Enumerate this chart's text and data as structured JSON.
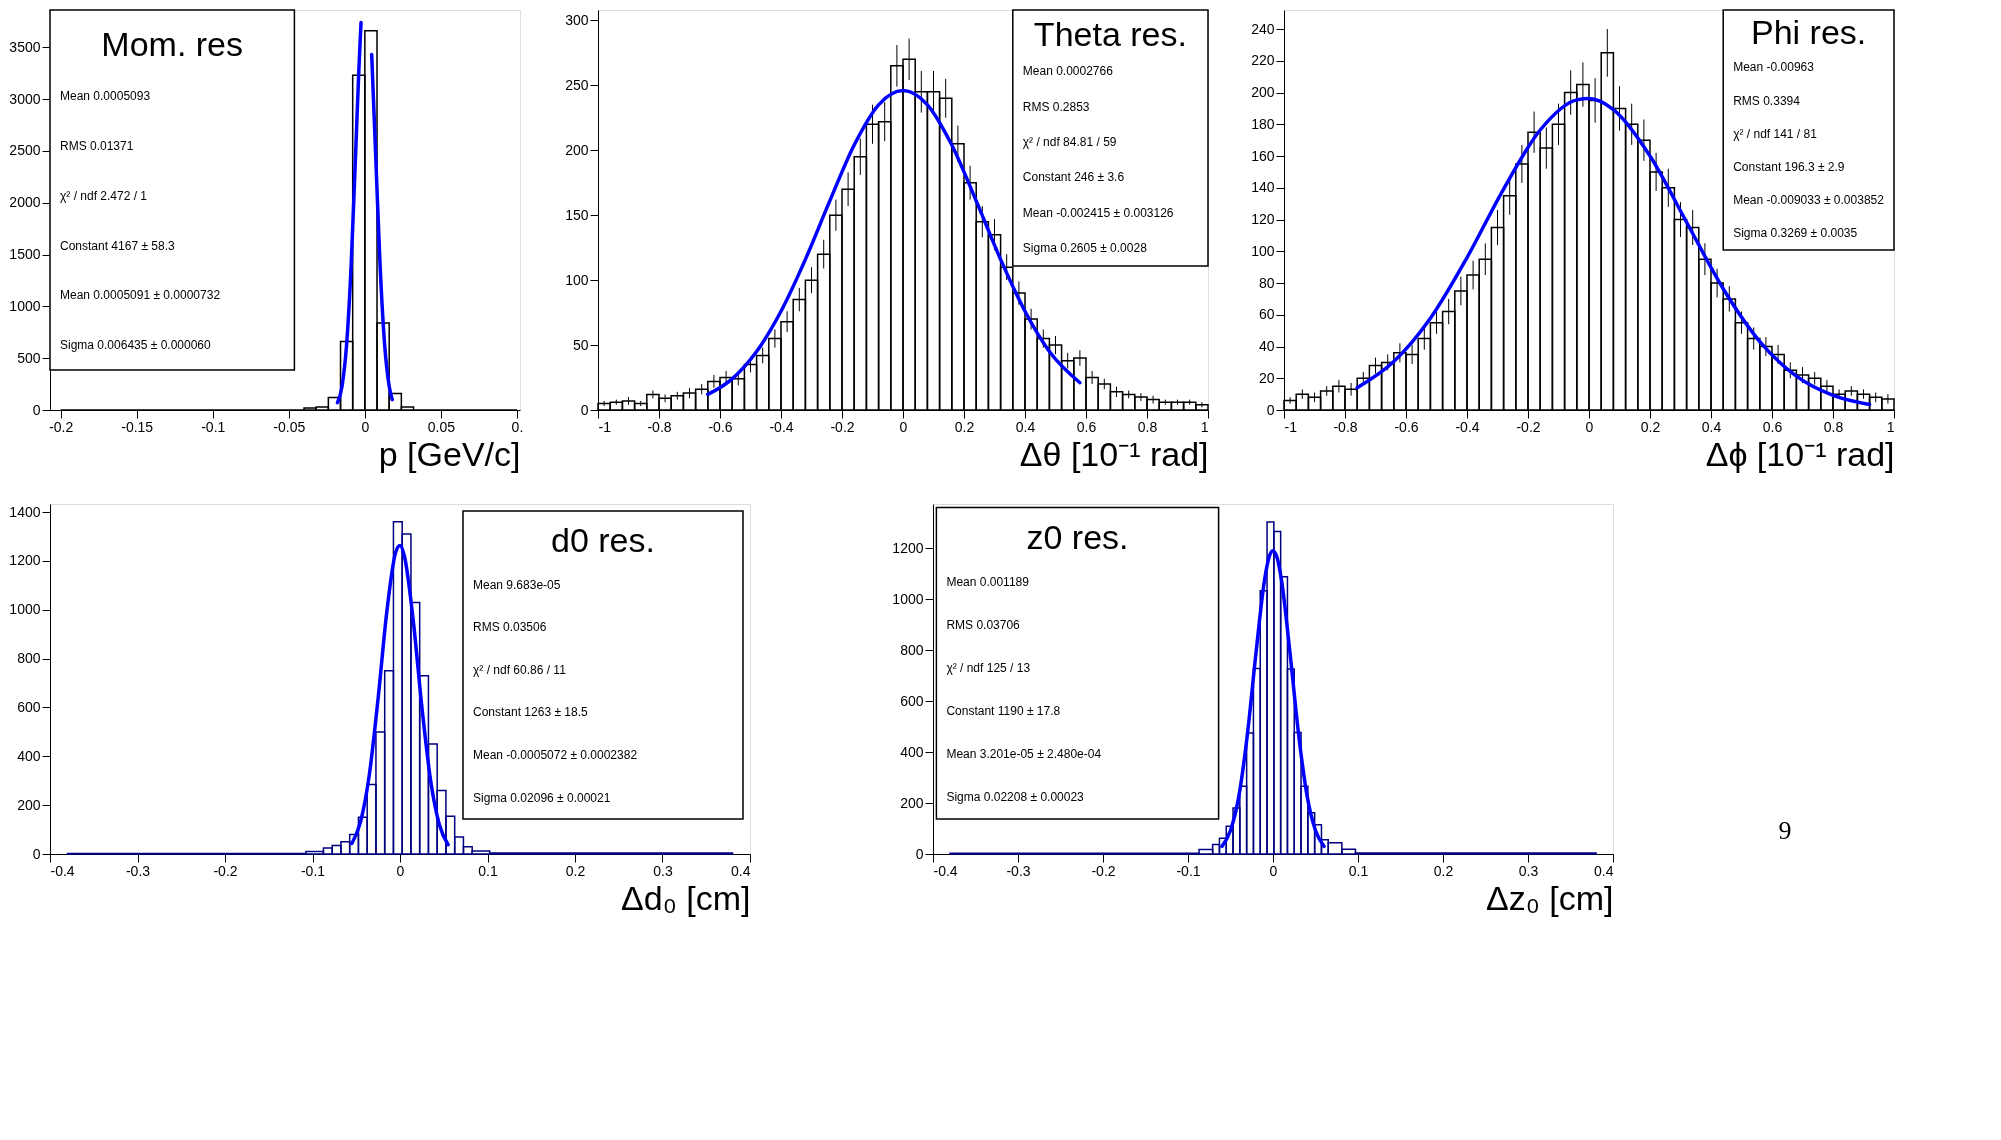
{
  "chart_data": [
    {
      "type": "histogram",
      "title": "Mom. res",
      "xlabel": "p [GeV/c]",
      "color": "#000000",
      "xlim": [
        -0.207,
        0.102
      ],
      "ylim": [
        0,
        3860
      ],
      "xticks": [
        -0.2,
        -0.15,
        -0.1,
        -0.05,
        0,
        0.05,
        {
          "value": 0.1,
          "label": "0."
        }
      ],
      "yticks": [
        0,
        500,
        1000,
        1500,
        2000,
        2500,
        3000,
        3500
      ],
      "bins": [
        -0.2,
        -0.04,
        -0.032,
        -0.024,
        -0.016,
        -0.008,
        0,
        0.008,
        0.016,
        0.024,
        0.032,
        0.1
      ],
      "values": [
        0,
        20,
        30,
        120,
        660,
        3230,
        3660,
        840,
        160,
        30,
        0
      ],
      "series": [
        {
          "type": "line",
          "color": "#0000ff",
          "x": [
            -0.018,
            -0.015,
            -0.012,
            -0.009,
            -0.006,
            -0.004,
            -0.003,
            -0.0025,
            -0.002,
            0,
            0.003,
            0.0045,
            0.007,
            0.01,
            0.013,
            0.016,
            0.018
          ],
          "values": [
            70,
            230,
            630,
            1400,
            2500,
            3260,
            3590,
            3740,
            null,
            null,
            null,
            3430,
            2500,
            1400,
            630,
            230,
            100
          ]
        }
      ],
      "annotations": [
        "Mean 0.0005093",
        "RMS 0.01371",
        "χ² / ndf 2.472 / 1",
        "Constant 4167 ± 58.3",
        "Mean 0.0005091 ± 0.0000732",
        "Sigma 0.006435 ± 0.000060"
      ]
    },
    {
      "type": "histogram",
      "title": "Theta res.",
      "xlabel": "Δθ [10⁻¹ rad]",
      "color": "#000000",
      "xlim": [
        -1,
        1
      ],
      "ylim": [
        0,
        308
      ],
      "xticks": [
        -1,
        -0.8,
        -0.6,
        -0.4,
        -0.2,
        0,
        0.2,
        0.4,
        0.6,
        0.8,
        1
      ],
      "yticks": [
        0,
        50,
        100,
        150,
        200,
        250,
        300
      ],
      "bins": [
        -1,
        -0.96,
        -0.92,
        -0.88,
        -0.84,
        -0.8,
        -0.76,
        -0.72,
        -0.68,
        -0.64,
        -0.6,
        -0.56,
        -0.52,
        -0.48,
        -0.44,
        -0.4,
        -0.36,
        -0.32,
        -0.28,
        -0.24,
        -0.2,
        -0.16,
        -0.12,
        -0.08,
        -0.04,
        0,
        0.04,
        0.08,
        0.12,
        0.16,
        0.2,
        0.24,
        0.28,
        0.32,
        0.36,
        0.4,
        0.44,
        0.48,
        0.52,
        0.56,
        0.6,
        0.64,
        0.68,
        0.72,
        0.76,
        0.8,
        0.84,
        0.88,
        0.92,
        0.96,
        1
      ],
      "values": [
        5,
        6,
        7,
        5,
        12,
        9,
        11,
        13,
        16,
        22,
        25,
        24,
        35,
        42,
        55,
        68,
        85,
        100,
        120,
        150,
        170,
        195,
        220,
        222,
        265,
        270,
        245,
        245,
        240,
        205,
        175,
        145,
        135,
        110,
        90,
        70,
        55,
        50,
        38,
        40,
        25,
        20,
        14,
        12,
        10,
        8,
        6,
        6,
        6,
        4
      ],
      "errors": [
        2,
        2,
        3,
        2,
        3,
        3,
        3,
        4,
        4,
        5,
        5,
        5,
        6,
        6,
        7,
        8,
        9,
        10,
        11,
        12,
        13,
        14,
        15,
        15,
        16,
        16,
        16,
        16,
        15,
        14,
        13,
        12,
        12,
        10,
        9,
        8,
        7,
        7,
        6,
        6,
        5,
        4,
        4,
        3,
        3,
        3,
        2,
        2,
        2,
        2
      ],
      "series": [
        {
          "type": "line",
          "color": "#0000ff",
          "x": [
            -0.64,
            -0.56,
            -0.48,
            -0.4,
            -0.32,
            -0.24,
            -0.16,
            -0.08,
            0,
            0.08,
            0.16,
            0.24,
            0.32,
            0.4,
            0.48,
            0.58
          ],
          "values": [
            12,
            24,
            45,
            76,
            116,
            161,
            204,
            235,
            246,
            235,
            204,
            161,
            116,
            76,
            45,
            21
          ]
        }
      ],
      "annotations": [
        "Mean 0.0002766",
        "RMS 0.2853",
        "χ² / ndf 84.81 / 59",
        "Constant 246 ± 3.6",
        "Mean -0.002415 ± 0.003126",
        "Sigma 0.2605 ± 0.0028"
      ]
    },
    {
      "type": "histogram",
      "title": "Phi res.",
      "xlabel": "Δϕ [10⁻¹ rad]",
      "color": "#000000",
      "xlim": [
        -1,
        1
      ],
      "ylim": [
        0,
        252
      ],
      "xticks": [
        -1,
        -0.8,
        -0.6,
        -0.4,
        -0.2,
        0,
        0.2,
        0.4,
        0.6,
        0.8,
        1
      ],
      "yticks": [
        0,
        20,
        40,
        60,
        80,
        100,
        120,
        140,
        160,
        180,
        200,
        220,
        240
      ],
      "bins": [
        -1,
        -0.96,
        -0.92,
        -0.88,
        -0.84,
        -0.8,
        -0.76,
        -0.72,
        -0.68,
        -0.64,
        -0.6,
        -0.56,
        -0.52,
        -0.48,
        -0.44,
        -0.4,
        -0.36,
        -0.32,
        -0.28,
        -0.24,
        -0.2,
        -0.16,
        -0.12,
        -0.08,
        -0.04,
        0,
        0.04,
        0.08,
        0.12,
        0.16,
        0.2,
        0.24,
        0.28,
        0.32,
        0.36,
        0.4,
        0.44,
        0.48,
        0.52,
        0.56,
        0.6,
        0.64,
        0.68,
        0.72,
        0.76,
        0.8,
        0.84,
        0.88,
        0.92,
        0.96,
        1
      ],
      "values": [
        6,
        10,
        8,
        12,
        15,
        13,
        20,
        28,
        30,
        36,
        35,
        45,
        55,
        62,
        75,
        85,
        95,
        115,
        135,
        155,
        175,
        165,
        180,
        200,
        205,
        195,
        225,
        190,
        180,
        170,
        150,
        140,
        120,
        115,
        95,
        80,
        70,
        55,
        45,
        40,
        35,
        25,
        22,
        20,
        15,
        10,
        12,
        10,
        8,
        7
      ],
      "errors": [
        2,
        3,
        3,
        3,
        4,
        4,
        4,
        5,
        5,
        6,
        6,
        7,
        7,
        8,
        9,
        9,
        10,
        11,
        12,
        12,
        13,
        13,
        13,
        14,
        14,
        14,
        15,
        14,
        13,
        13,
        12,
        12,
        11,
        11,
        10,
        9,
        8,
        7,
        7,
        6,
        6,
        5,
        5,
        4,
        4,
        3,
        3,
        3,
        3,
        3
      ],
      "series": [
        {
          "type": "line",
          "color": "#0000ff",
          "x": [
            -0.76,
            -0.64,
            -0.52,
            -0.4,
            -0.28,
            -0.16,
            -0.04,
            0,
            0.08,
            0.2,
            0.32,
            0.44,
            0.56,
            0.68,
            0.8,
            0.92
          ],
          "values": [
            14,
            30.5,
            57.8,
            96,
            139.2,
            176.4,
            195.4,
            196.2,
            189.2,
            160,
            118.3,
            76.4,
            43.1,
            21.3,
            9.2,
            3.5
          ]
        }
      ],
      "annotations": [
        "Mean -0.00963",
        "RMS 0.3394",
        "χ² / ndf 141 / 81",
        "Constant 196.3 ± 2.9",
        "Mean -0.009033 ± 0.003852",
        "Sigma 0.3269 ± 0.0035"
      ]
    },
    {
      "type": "histogram",
      "title": "d0 res.",
      "xlabel": "Δd₀ [cm]",
      "color": "#000080",
      "xlim": [
        -0.4,
        0.4
      ],
      "ylim": [
        0,
        1433
      ],
      "xticks": [
        -0.4,
        -0.3,
        -0.2,
        -0.1,
        0,
        0.1,
        0.2,
        0.3,
        0.4
      ],
      "yticks": [
        0,
        200,
        400,
        600,
        800,
        1000,
        1200,
        1400
      ],
      "bins": [
        -0.38,
        -0.1075,
        -0.0875,
        -0.0775,
        -0.0675,
        -0.0575,
        -0.0475,
        -0.0375,
        -0.0275,
        -0.0175,
        -0.0075,
        0.0025,
        0.0125,
        0.0225,
        0.0325,
        0.0425,
        0.0525,
        0.0625,
        0.0725,
        0.0825,
        0.1025,
        0.38
      ],
      "values": [
        2,
        10,
        25,
        35,
        50,
        80,
        150,
        285,
        500,
        750,
        1360,
        1310,
        1030,
        730,
        450,
        260,
        155,
        70,
        30,
        12,
        4
      ],
      "series": [
        {
          "type": "line",
          "color": "#0000ff",
          "x": [
            -0.055,
            -0.045,
            -0.035,
            -0.025,
            -0.015,
            -0.005,
            0,
            0.005,
            0.015,
            0.025,
            0.035,
            0.045,
            0.055
          ],
          "values": [
            43,
            133,
            326,
            638,
            994,
            1234,
            1263,
            1220,
            960,
            602,
            301,
            120,
            38
          ]
        }
      ],
      "annotations": [
        "Mean 9.683e-05",
        "RMS 0.03506",
        "χ² / ndf 60.86 / 11",
        "Constant 1263 ± 18.5",
        "Mean -0.0005072 ± 0.0002382",
        "Sigma 0.02096 ± 0.00021"
      ]
    },
    {
      "type": "histogram",
      "title": "z0 res.",
      "xlabel": "Δz₀ [cm]",
      "color": "#000080",
      "xlim": [
        -0.4,
        0.4
      ],
      "ylim": [
        0,
        1373
      ],
      "xticks": [
        -0.4,
        -0.3,
        -0.2,
        -0.1,
        0,
        0.1,
        0.2,
        0.3,
        0.4
      ],
      "yticks": [
        0,
        200,
        400,
        600,
        800,
        1000,
        1200
      ],
      "bins": [
        -0.38,
        -0.087,
        -0.071,
        -0.063,
        -0.055,
        -0.047,
        -0.039,
        -0.031,
        -0.023,
        -0.015,
        -0.007,
        0.001,
        0.009,
        0.017,
        0.025,
        0.033,
        0.041,
        0.049,
        0.057,
        0.065,
        0.081,
        0.097,
        0.38
      ],
      "values": [
        3,
        18,
        37,
        62,
        109,
        180,
        266,
        475,
        728,
        1033,
        1302,
        1265,
        1088,
        726,
        477,
        266,
        162,
        115,
        56,
        44,
        19,
        4
      ],
      "series": [
        {
          "type": "line",
          "color": "#0000ff",
          "x": [
            -0.06,
            -0.05,
            -0.04,
            -0.03,
            -0.02,
            -0.01,
            -0.005,
            0,
            0.005,
            0.01,
            0.02,
            0.03,
            0.04,
            0.05,
            0.06
          ],
          "values": [
            30,
            92,
            230,
            473,
            789,
            1074,
            1160,
            1190,
            1160,
            1074,
            789,
            473,
            230,
            92,
            30
          ]
        }
      ],
      "annotations": [
        "Mean 0.001189",
        "RMS 0.03706",
        "χ² / ndf 125 / 13",
        "Constant 1190 ± 17.8",
        "Mean 3.201e-05 ± 2.480e-04",
        "Sigma 0.02208 ± 0.00023"
      ]
    },
    {
      "type": "other",
      "annotations": [
        "9"
      ]
    }
  ]
}
